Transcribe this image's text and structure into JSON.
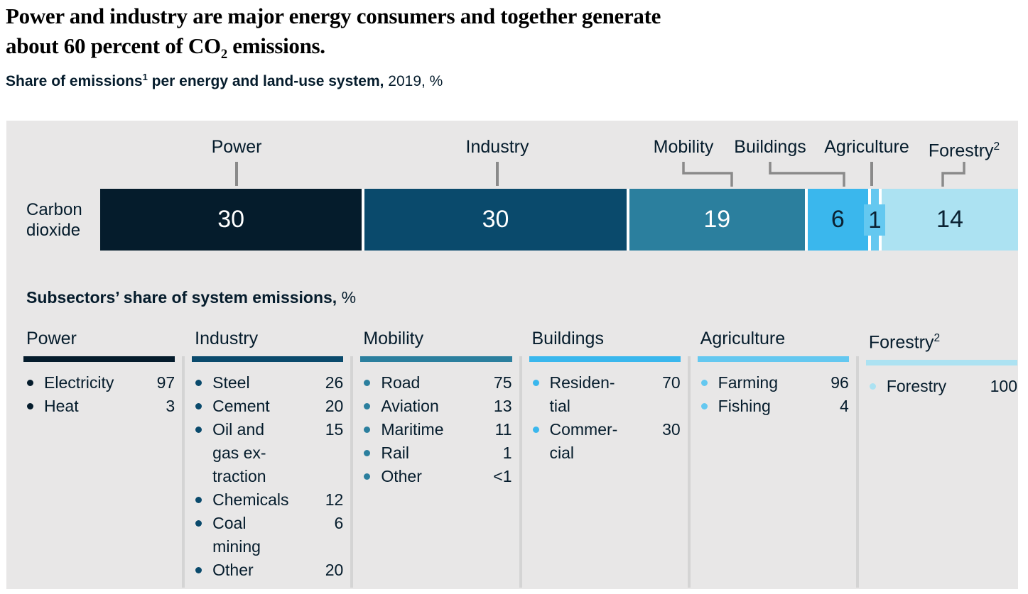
{
  "title": {
    "line1": "Power and industry are major energy consumers and together generate",
    "line2_pre": "about 60 percent of CO",
    "line2_sub": "2",
    "line2_post": " emissions."
  },
  "subtitle": {
    "bold_pre": "Share of emissions",
    "sup": "1",
    "bold_post": " per energy and land-use system,",
    "regular": " 2019, %"
  },
  "bar_chart": {
    "row_label_line1": "Carbon",
    "row_label_line2": "dioxide",
    "segments": [
      {
        "label": "Power",
        "sup": "",
        "value": "30",
        "color": "#051c2c",
        "text_color": "#ffffff",
        "badge": false
      },
      {
        "label": "Industry",
        "sup": "",
        "value": "30",
        "color": "#0a4a6c",
        "text_color": "#ffffff",
        "badge": false
      },
      {
        "label": "Mobility",
        "sup": "",
        "value": "19",
        "color": "#2b7f9e",
        "text_color": "#ffffff",
        "badge": false
      },
      {
        "label": "Buildings",
        "sup": "",
        "value": "6",
        "color": "#3ab7ed",
        "text_color": "#0b2233",
        "badge": false
      },
      {
        "label": "Agriculture",
        "sup": "",
        "value": "1",
        "color": "#64c8f0",
        "text_color": "#0b2233",
        "badge": true
      },
      {
        "label": "Forestry",
        "sup": "2",
        "value": "14",
        "color": "#ace2f2",
        "text_color": "#0b2233",
        "badge": false
      }
    ]
  },
  "subsectors": {
    "heading_bold": "Subsectors’ share of system emissions,",
    "heading_suffix": "%",
    "columns": [
      {
        "header": "Power",
        "sup": "",
        "color": "#051c2c",
        "items": [
          {
            "lines": [
              "Electricity"
            ],
            "value": "97"
          },
          {
            "lines": [
              "Heat"
            ],
            "value": "3"
          }
        ]
      },
      {
        "header": "Industry",
        "sup": "",
        "color": "#0a4a6c",
        "items": [
          {
            "lines": [
              "Steel"
            ],
            "value": "26"
          },
          {
            "lines": [
              "Cement"
            ],
            "value": "20"
          },
          {
            "lines": [
              "Oil and",
              "gas ex-",
              "traction"
            ],
            "value": "15"
          },
          {
            "lines": [
              "Chemicals"
            ],
            "value": "12"
          },
          {
            "lines": [
              "Coal",
              "mining"
            ],
            "value": "6"
          },
          {
            "lines": [
              "Other"
            ],
            "value": "20"
          }
        ]
      },
      {
        "header": "Mobility",
        "sup": "",
        "color": "#2b7f9e",
        "items": [
          {
            "lines": [
              "Road"
            ],
            "value": "75"
          },
          {
            "lines": [
              "Aviation"
            ],
            "value": "13"
          },
          {
            "lines": [
              "Maritime"
            ],
            "value": "11"
          },
          {
            "lines": [
              "Rail"
            ],
            "value": "1"
          },
          {
            "lines": [
              "Other"
            ],
            "value": "<1"
          }
        ]
      },
      {
        "header": "Buildings",
        "sup": "",
        "color": "#3ab7ed",
        "items": [
          {
            "lines": [
              "Residen-",
              "tial"
            ],
            "value": "70"
          },
          {
            "lines": [
              "Commer-",
              "cial"
            ],
            "value": "30"
          }
        ]
      },
      {
        "header": "Agriculture",
        "sup": "",
        "color": "#64c8f0",
        "items": [
          {
            "lines": [
              "Farming"
            ],
            "value": "96"
          },
          {
            "lines": [
              "Fishing"
            ],
            "value": "4"
          }
        ]
      },
      {
        "header": "Forestry",
        "sup": "2",
        "color": "#ace2f2",
        "items": [
          {
            "lines": [
              "Forestry"
            ],
            "value": "100"
          }
        ]
      }
    ]
  },
  "chart_data": {
    "type": "bar",
    "subtype": "horizontal-stacked",
    "title": "Share of emissions per energy and land-use system, 2019, %",
    "row_label": "Carbon dioxide",
    "categories": [
      "Power",
      "Industry",
      "Mobility",
      "Buildings",
      "Agriculture",
      "Forestry"
    ],
    "values": [
      30,
      30,
      19,
      6,
      1,
      14
    ],
    "unit": "%",
    "year": "2019",
    "legend_position": "above-bar",
    "subsector_tables": [
      {
        "system": "Power",
        "entries": [
          [
            "Electricity",
            97
          ],
          [
            "Heat",
            3
          ]
        ]
      },
      {
        "system": "Industry",
        "entries": [
          [
            "Steel",
            26
          ],
          [
            "Cement",
            20
          ],
          [
            "Oil and gas extraction",
            15
          ],
          [
            "Chemicals",
            12
          ],
          [
            "Coal mining",
            6
          ],
          [
            "Other",
            20
          ]
        ]
      },
      {
        "system": "Mobility",
        "entries": [
          [
            "Road",
            75
          ],
          [
            "Aviation",
            13
          ],
          [
            "Maritime",
            11
          ],
          [
            "Rail",
            1
          ],
          [
            "Other",
            "<1"
          ]
        ]
      },
      {
        "system": "Buildings",
        "entries": [
          [
            "Residential",
            70
          ],
          [
            "Commercial",
            30
          ]
        ]
      },
      {
        "system": "Agriculture",
        "entries": [
          [
            "Farming",
            96
          ],
          [
            "Fishing",
            4
          ]
        ]
      },
      {
        "system": "Forestry",
        "entries": [
          [
            "Forestry",
            100
          ]
        ]
      }
    ]
  }
}
